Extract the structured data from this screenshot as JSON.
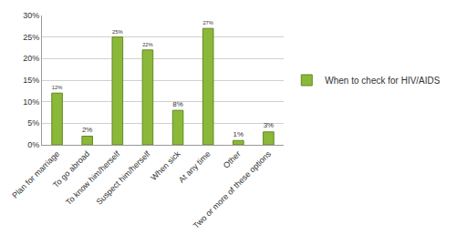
{
  "chart_data": {
    "type": "bar",
    "categories": [
      "Plan for marriage",
      "To go abroad",
      "To know him/herself",
      "Suspect him/herself",
      "When sick",
      "At any time",
      "Other",
      "Two or more of these options"
    ],
    "series": [
      {
        "name": "When to check for HIV/AIDS",
        "color": "#8cb83a",
        "values": [
          12,
          2,
          25,
          22,
          8,
          27,
          1,
          3
        ],
        "value_labels": [
          "12%",
          "2%",
          "25%",
          "22%",
          "8%",
          "27%",
          "1%",
          "3%"
        ]
      }
    ],
    "ylim": [
      0,
      30
    ],
    "yticks": [
      {
        "value": 0,
        "label": "0%"
      },
      {
        "value": 5,
        "label": "5%"
      },
      {
        "value": 10,
        "label": "10%"
      },
      {
        "value": 15,
        "label": "15%"
      },
      {
        "value": 20,
        "label": "20%"
      },
      {
        "value": 25,
        "label": "25%"
      },
      {
        "value": 30,
        "label": "30%"
      }
    ],
    "grid": true,
    "legend": "right",
    "data_labels": true
  }
}
